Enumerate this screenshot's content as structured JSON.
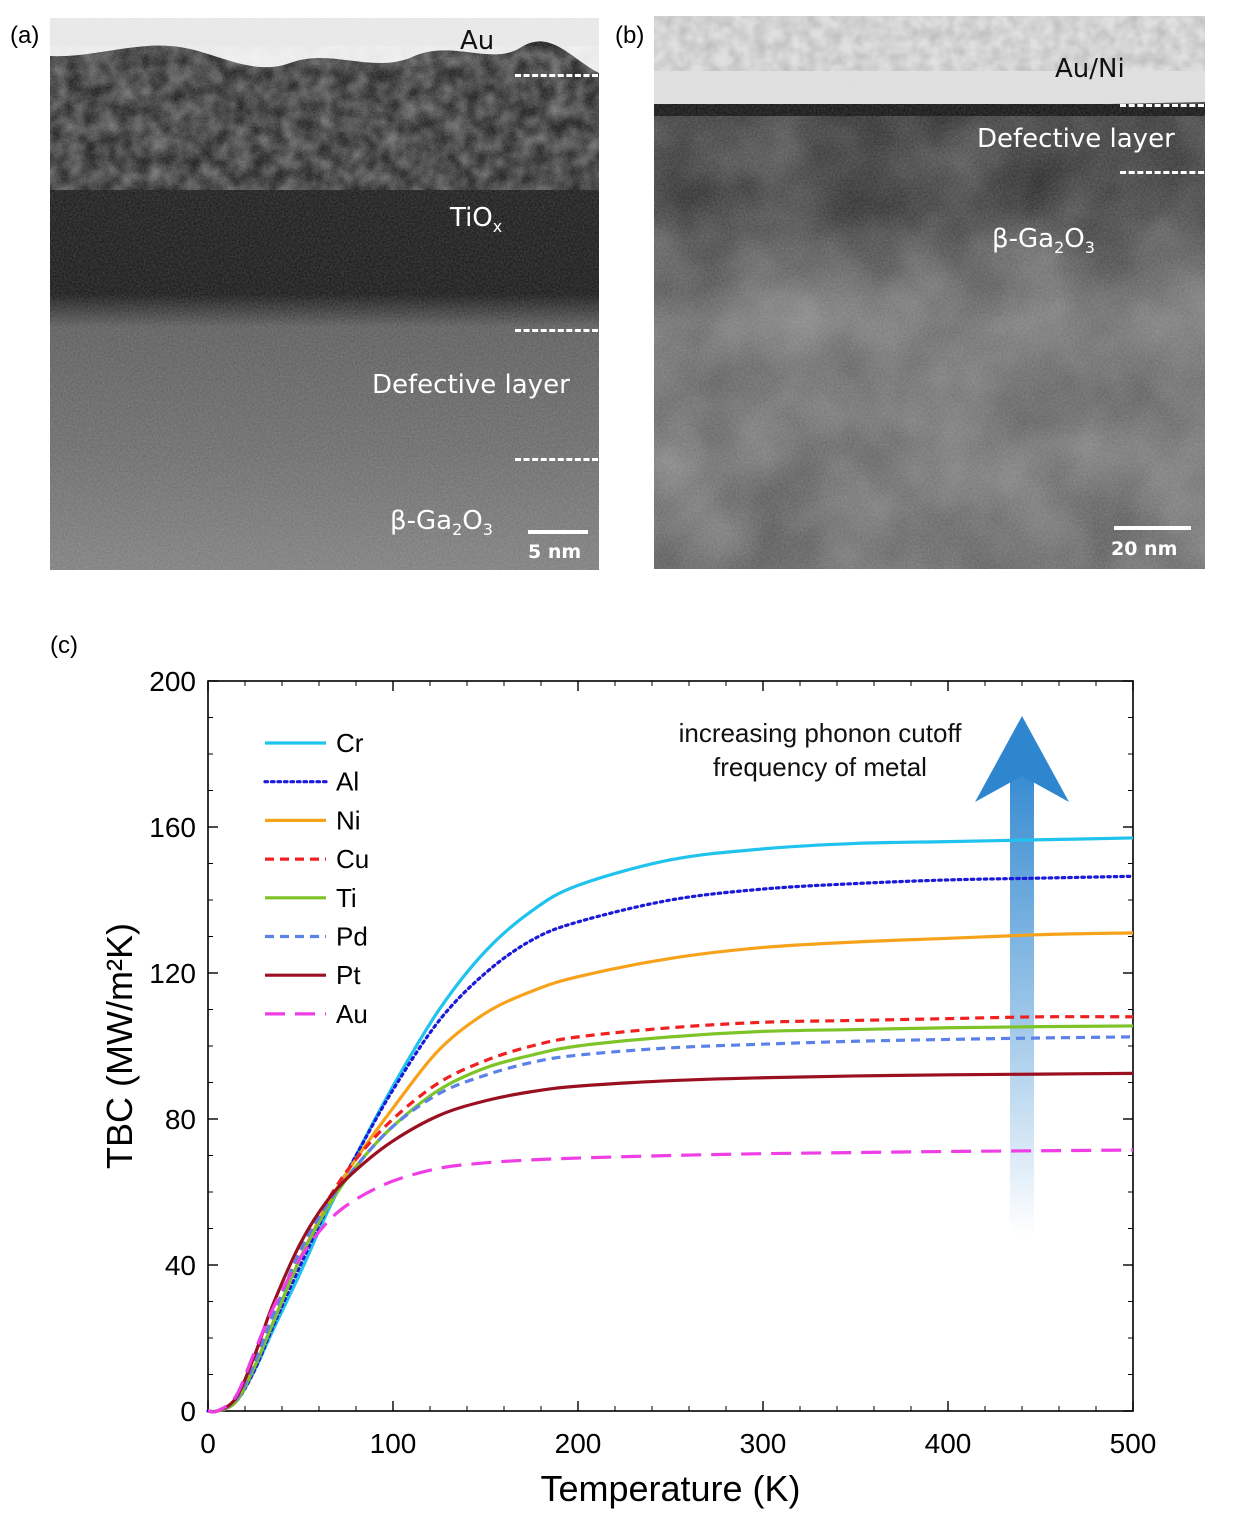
{
  "panel_a": {
    "label": "(a)",
    "layers": {
      "top": "Au",
      "middle": "TiO",
      "middle_sub": "x",
      "defect": "Defective layer",
      "substrate": "β-Ga",
      "sub1": "2",
      "sub_o": "O",
      "sub2": "3"
    },
    "scale": "5 nm"
  },
  "panel_b": {
    "label": "(b)",
    "layers": {
      "top": "Au/Ni",
      "defect": "Defective layer",
      "substrate": "β-Ga",
      "sub1": "2",
      "sub_o": "O",
      "sub2": "3"
    },
    "scale": "20 nm"
  },
  "panel_c": {
    "label": "(c)"
  },
  "chart_data": {
    "type": "line",
    "title": "",
    "xlabel": "Temperature (K)",
    "ylabel": "TBC (MW/m²K)",
    "xlim": [
      0,
      500
    ],
    "ylim": [
      0,
      200
    ],
    "xticks": [
      0,
      100,
      200,
      300,
      400,
      500
    ],
    "yticks": [
      0,
      40,
      80,
      120,
      160,
      200
    ],
    "annotation": [
      "increasing phonon cutoff",
      "frequency of metal"
    ],
    "legend_position": "top-left",
    "x": [
      5,
      15,
      25,
      35,
      50,
      65,
      80,
      100,
      125,
      150,
      175,
      200,
      250,
      300,
      350,
      400,
      450,
      500
    ],
    "series": [
      {
        "name": "Cr",
        "color": "#1fc3ee",
        "dash": "solid",
        "values": [
          0,
          2.5,
          11,
          22,
          38,
          55,
          70,
          89,
          110,
          126,
          137,
          144,
          151,
          154,
          155.5,
          156,
          156.5,
          157
        ]
      },
      {
        "name": "Al",
        "color": "#1a1ad8",
        "dash": "dotted",
        "values": [
          0,
          2.5,
          11,
          23,
          40,
          56,
          70,
          88,
          107,
          120,
          129,
          134,
          140,
          143,
          144.5,
          145.5,
          146,
          146.5
        ]
      },
      {
        "name": "Ni",
        "color": "#f6a21b",
        "dash": "solid",
        "values": [
          0,
          2.5,
          12,
          24,
          42,
          57,
          69,
          83,
          99,
          109,
          115,
          119,
          124,
          127,
          128.5,
          129.5,
          130.5,
          131
        ]
      },
      {
        "name": "Cu",
        "color": "#f02020",
        "dash": "dashed",
        "values": [
          0,
          3,
          13,
          26,
          44,
          58,
          69,
          80,
          90,
          96,
          100,
          102.5,
          105,
          106.5,
          107,
          107.5,
          108,
          108
        ]
      },
      {
        "name": "Ti",
        "color": "#7dc428",
        "dash": "solid",
        "values": [
          0,
          2.5,
          12,
          24,
          42,
          56,
          67,
          78,
          88,
          94,
          97.5,
          100,
          102.5,
          104,
          104.5,
          105,
          105.3,
          105.5
        ]
      },
      {
        "name": "Pd",
        "color": "#5b82e8",
        "dash": "dashed",
        "values": [
          0,
          3,
          13,
          26,
          44,
          57,
          67,
          78,
          87,
          92,
          95.5,
          97.5,
          99.5,
          100.5,
          101.3,
          101.8,
          102.2,
          102.5
        ]
      },
      {
        "name": "Pt",
        "color": "#9a1020",
        "dash": "solid",
        "values": [
          0,
          3.5,
          15,
          29,
          46,
          58,
          66,
          74,
          81,
          85,
          87.5,
          89,
          90.5,
          91.3,
          91.8,
          92.1,
          92.3,
          92.5
        ]
      },
      {
        "name": "Au",
        "color": "#ef3ee6",
        "dash": "longdash",
        "values": [
          0,
          4,
          16,
          28,
          42,
          52,
          58,
          63,
          66.5,
          68,
          68.8,
          69.3,
          70,
          70.5,
          70.8,
          71.1,
          71.3,
          71.5
        ]
      }
    ]
  }
}
